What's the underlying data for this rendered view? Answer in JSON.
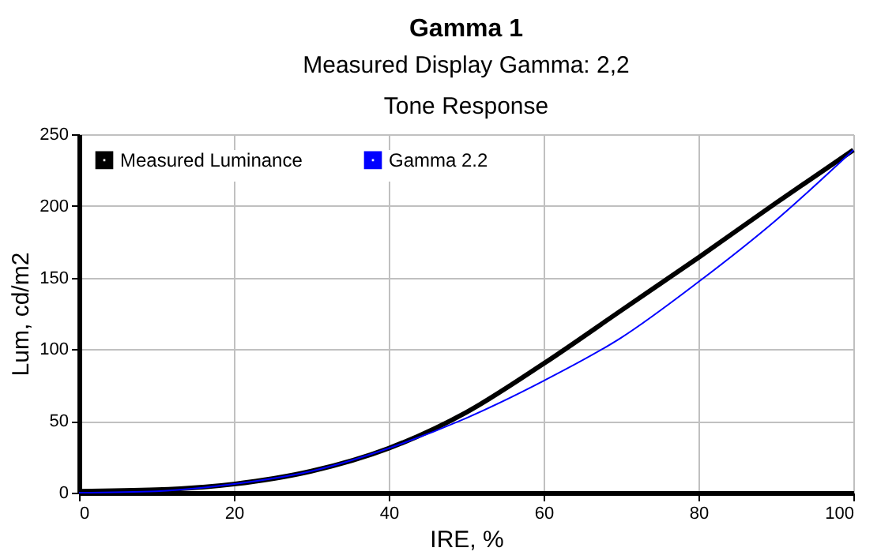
{
  "chart_data": {
    "type": "line",
    "title": "Gamma 1",
    "subtitle": "Measured Display Gamma: 2,2",
    "annotations": [
      "Tone Response"
    ],
    "xlabel": "IRE, %",
    "ylabel": "Lum, cd/m2",
    "x": [
      0,
      10,
      20,
      30,
      40,
      50,
      60,
      70,
      80,
      90,
      100
    ],
    "series": [
      {
        "name": "Measured Luminance",
        "color": "#000000",
        "values": [
          1,
          2,
          6,
          15,
          31,
          56,
          90,
          127,
          164,
          202,
          239
        ]
      },
      {
        "name": "Gamma 2.2",
        "color": "#0000ff",
        "values": [
          0,
          1,
          6,
          15,
          31,
          52,
          78,
          108,
          147,
          190,
          239
        ]
      }
    ],
    "xlim": [
      0,
      100
    ],
    "xticks": [
      0,
      20,
      40,
      60,
      80,
      100
    ],
    "ylim": [
      0,
      250
    ],
    "yticks": [
      0,
      50,
      100,
      150,
      200,
      250
    ],
    "grid": true,
    "legend": "top left",
    "marker": "none",
    "line_style": "solid"
  }
}
